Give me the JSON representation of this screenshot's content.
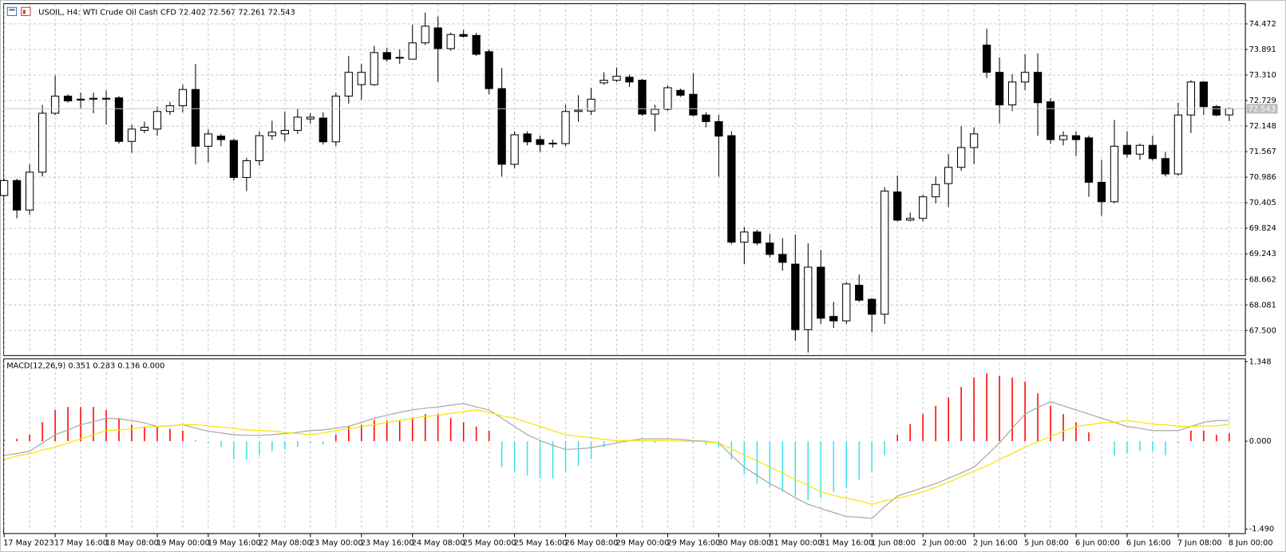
{
  "chart_data": [
    {
      "type": "candlestick",
      "title": "USOIL, H4:  WTI Crude Oil Cash CFD  72.402 72.567 72.261 72.543",
      "categories": [
        "17 May 2023",
        null,
        null,
        null,
        "17 May 16:00",
        null,
        null,
        null,
        "18 May 08:00",
        null,
        null,
        null,
        "19 May 00:00",
        null,
        null,
        null,
        "19 May 16:00",
        null,
        null,
        null,
        "22 May 08:00",
        null,
        null,
        null,
        "23 May 00:00",
        null,
        null,
        null,
        "23 May 16:00",
        null,
        null,
        null,
        "24 May 08:00",
        null,
        null,
        null,
        "25 May 00:00",
        null,
        null,
        null,
        "25 May 16:00",
        null,
        null,
        null,
        "26 May 08:00",
        null,
        null,
        null,
        "29 May 00:00",
        null,
        null,
        null,
        "29 May 16:00",
        null,
        null,
        null,
        "30 May 08:00",
        null,
        null,
        null,
        "31 May 00:00",
        null,
        null,
        null,
        "31 May 16:00",
        null,
        null,
        null,
        "1 Jun 08:00",
        null,
        null,
        null,
        "2 Jun 00:00",
        null,
        null,
        null,
        "2 Jun 16:00",
        null,
        null,
        null,
        "5 Jun 08:00",
        null,
        null,
        null,
        "6 Jun 00:00",
        null,
        null,
        null,
        "6 Jun 16:00",
        null,
        null,
        null,
        "7 Jun 08:00",
        null,
        null,
        null,
        "8 Jun 00:00"
      ],
      "open": [
        70.57,
        70.91,
        70.24,
        71.1,
        72.44,
        72.83,
        72.74,
        72.76,
        72.78,
        72.79,
        71.8,
        72.05,
        72.08,
        72.48,
        72.61,
        72.98,
        71.69,
        71.92,
        71.82,
        70.98,
        71.36,
        71.93,
        71.97,
        72.05,
        72.31,
        72.33,
        71.79,
        72.83,
        73.09,
        73.09,
        73.82,
        73.71,
        73.67,
        74.04,
        74.38,
        73.91,
        74.23,
        74.21,
        73.84,
        73.0,
        71.28,
        71.97,
        71.84,
        71.76,
        71.75,
        72.48,
        72.49,
        73.13,
        73.19,
        73.26,
        73.19,
        72.42,
        72.53,
        72.96,
        72.87,
        72.4,
        72.25,
        71.93,
        69.51,
        69.74,
        69.49,
        69.23,
        69.01,
        67.52,
        68.94,
        67.82,
        67.72,
        68.53,
        68.21,
        67.87,
        70.65,
        70.01,
        70.05,
        70.54,
        70.84,
        71.21,
        71.66,
        73.99,
        73.37,
        72.63,
        73.15,
        73.37,
        72.7,
        71.84,
        71.93,
        71.88,
        70.87,
        70.43,
        71.71,
        71.51,
        71.71,
        71.41,
        71.06,
        72.4,
        73.15,
        72.59,
        72.402
      ],
      "high": [
        70.95,
        70.95,
        71.28,
        72.63,
        73.3,
        72.87,
        72.91,
        72.91,
        72.96,
        72.83,
        72.18,
        72.25,
        72.59,
        72.7,
        73.09,
        73.56,
        72.07,
        71.97,
        71.86,
        71.43,
        72.03,
        72.27,
        72.48,
        72.55,
        72.44,
        72.46,
        72.91,
        73.74,
        73.56,
        73.97,
        73.93,
        73.89,
        74.45,
        74.73,
        74.64,
        74.27,
        74.34,
        74.27,
        73.89,
        73.47,
        72.03,
        72.03,
        71.93,
        71.84,
        72.63,
        72.85,
        73.02,
        73.37,
        73.48,
        73.32,
        73.22,
        72.63,
        73.07,
        73.0,
        73.35,
        72.46,
        72.4,
        72.03,
        69.85,
        69.79,
        69.7,
        69.6,
        69.68,
        69.48,
        69.33,
        68.15,
        68.6,
        68.77,
        68.24,
        70.76,
        71.02,
        70.18,
        70.59,
        71.0,
        71.51,
        72.14,
        72.12,
        74.36,
        73.71,
        73.33,
        73.78,
        73.8,
        72.78,
        72.03,
        72.03,
        71.93,
        71.38,
        72.29,
        72.03,
        71.75,
        71.93,
        71.56,
        72.68,
        73.19,
        73.17,
        72.63,
        72.567
      ],
      "low": [
        70.54,
        70.05,
        70.13,
        71.0,
        72.4,
        72.68,
        72.55,
        72.44,
        72.18,
        71.75,
        71.54,
        71.99,
        71.93,
        72.4,
        72.46,
        71.28,
        71.32,
        71.69,
        70.91,
        70.67,
        71.25,
        71.84,
        71.8,
        71.97,
        72.21,
        71.73,
        71.69,
        72.66,
        72.74,
        73.06,
        73.61,
        73.56,
        73.67,
        73.99,
        73.15,
        73.86,
        74.16,
        73.74,
        72.87,
        71.0,
        71.19,
        71.71,
        71.56,
        71.66,
        71.69,
        72.25,
        72.4,
        73.09,
        73.15,
        73.04,
        72.38,
        72.03,
        72.49,
        72.81,
        72.37,
        72.12,
        71.0,
        69.46,
        69.01,
        69.44,
        69.16,
        68.86,
        67.27,
        67.0,
        67.65,
        67.56,
        67.65,
        68.15,
        67.46,
        67.65,
        69.98,
        69.98,
        69.98,
        70.39,
        70.31,
        71.13,
        71.28,
        73.24,
        72.21,
        72.49,
        72.96,
        71.93,
        71.75,
        71.71,
        71.47,
        70.54,
        70.11,
        70.39,
        71.43,
        71.38,
        71.36,
        71.0,
        71.02,
        71.99,
        72.4,
        72.37,
        72.261
      ],
      "close": [
        70.91,
        70.24,
        71.1,
        72.44,
        72.83,
        72.72,
        72.76,
        72.78,
        72.77,
        71.8,
        72.08,
        72.12,
        72.48,
        72.61,
        72.98,
        71.69,
        71.97,
        71.84,
        70.98,
        71.36,
        71.93,
        72.01,
        72.05,
        72.35,
        72.35,
        71.79,
        72.83,
        73.37,
        73.37,
        73.82,
        73.67,
        73.7,
        74.04,
        74.42,
        73.91,
        74.23,
        74.19,
        73.78,
        73.0,
        71.28,
        71.95,
        71.79,
        71.73,
        71.75,
        72.48,
        72.51,
        72.76,
        73.19,
        73.28,
        73.15,
        72.42,
        72.53,
        73.02,
        72.85,
        72.4,
        72.25,
        71.92,
        69.51,
        69.74,
        69.49,
        69.23,
        69.05,
        67.52,
        68.94,
        67.78,
        67.72,
        68.56,
        68.19,
        67.87,
        70.67,
        70.01,
        70.05,
        70.54,
        70.82,
        71.21,
        71.66,
        71.97,
        73.37,
        72.63,
        73.15,
        73.37,
        72.68,
        71.84,
        71.93,
        71.84,
        70.87,
        70.43,
        71.69,
        71.51,
        71.71,
        71.41,
        71.06,
        72.4,
        73.15,
        72.59,
        72.4,
        72.543
      ],
      "up_color": "#ffffff",
      "down_color": "#000000",
      "last_price": 72.543,
      "ylim": [
        66.94,
        74.94
      ],
      "yticks": [
        {
          "value": 67.5,
          "label": "67.500"
        },
        68.081,
        68.662,
        69.243,
        69.824,
        70.405,
        70.986,
        71.567,
        72.148,
        72.729,
        {
          "value": 73.31,
          "label": "73.310"
        },
        73.891,
        74.472
      ],
      "grid": true
    },
    {
      "type": "macd",
      "title": "MACD(12,26,9) 0.351 0.283 0.136 0.000",
      "ylim": [
        -1.49,
        1.348
      ],
      "yticks": [
        1.348,
        {
          "value": 0,
          "label": "0.000"
        },
        {
          "value": -1.49,
          "label": "-1.490"
        }
      ],
      "series": [
        {
          "kind": "histogram",
          "up_color": "#ff0000",
          "down_color": "#3fe0e8",
          "values": [
            0.02,
            0.04,
            0.11,
            0.32,
            0.53,
            0.58,
            0.58,
            0.58,
            0.53,
            0.39,
            0.28,
            0.25,
            0.25,
            0.21,
            0.18,
            0.01,
            -0.03,
            -0.1,
            -0.31,
            -0.31,
            -0.24,
            -0.17,
            -0.14,
            -0.1,
            -0.03,
            -0.06,
            0.11,
            0.25,
            0.28,
            0.36,
            0.35,
            0.36,
            0.39,
            0.46,
            0.46,
            0.39,
            0.32,
            0.25,
            0.18,
            -0.44,
            -0.51,
            -0.58,
            -0.63,
            -0.63,
            -0.51,
            -0.42,
            -0.31,
            -0.1,
            -0.03,
            0.01,
            -0.03,
            -0.03,
            0.0,
            0.01,
            -0.03,
            -0.06,
            -0.1,
            -0.31,
            -0.56,
            -0.72,
            -0.79,
            -0.86,
            -0.93,
            -1.0,
            -0.97,
            -0.86,
            -0.79,
            -0.65,
            -0.51,
            -0.24,
            0.11,
            0.29,
            0.46,
            0.6,
            0.74,
            0.92,
            1.08,
            1.15,
            1.11,
            1.08,
            1.01,
            0.81,
            0.6,
            0.46,
            0.32,
            0.15,
            0.0,
            -0.24,
            -0.21,
            -0.17,
            -0.17,
            -0.24,
            -0.03,
            0.18,
            0.18,
            0.11,
            0.136
          ]
        },
        {
          "kind": "line",
          "color": "#a8a8a8",
          "values": [
            -0.24,
            -0.21,
            -0.17,
            -0.03,
            0.11,
            0.19,
            0.28,
            0.33,
            0.39,
            0.38,
            0.35,
            0.31,
            0.25,
            0.26,
            0.28,
            0.22,
            0.17,
            0.14,
            0.11,
            0.1,
            0.1,
            0.11,
            0.13,
            0.15,
            0.18,
            0.19,
            0.22,
            0.25,
            0.32,
            0.39,
            0.44,
            0.49,
            0.53,
            0.56,
            0.58,
            0.61,
            0.64,
            0.58,
            0.53,
            0.39,
            0.25,
            0.11,
            0.01,
            -0.07,
            -0.14,
            -0.13,
            -0.11,
            -0.07,
            -0.03,
            0.01,
            0.04,
            0.04,
            0.04,
            0.03,
            0.01,
            0.0,
            -0.03,
            -0.24,
            -0.44,
            -0.58,
            -0.72,
            -0.83,
            -0.96,
            -1.07,
            -1.14,
            -1.21,
            -1.28,
            -1.29,
            -1.31,
            -1.11,
            -0.93,
            -0.86,
            -0.79,
            -0.72,
            -0.63,
            -0.54,
            -0.44,
            -0.24,
            -0.03,
            0.22,
            0.46,
            0.57,
            0.67,
            0.6,
            0.53,
            0.46,
            0.39,
            0.32,
            0.25,
            0.22,
            0.18,
            0.18,
            0.18,
            0.25,
            0.32,
            0.35,
            0.351
          ]
        },
        {
          "kind": "line",
          "color": "#f5e600",
          "values": [
            -0.31,
            -0.25,
            -0.21,
            -0.15,
            -0.1,
            -0.03,
            0.04,
            0.11,
            0.18,
            0.19,
            0.21,
            0.24,
            0.25,
            0.26,
            0.28,
            0.28,
            0.26,
            0.24,
            0.22,
            0.19,
            0.18,
            0.17,
            0.15,
            0.13,
            0.11,
            0.14,
            0.18,
            0.21,
            0.25,
            0.28,
            0.32,
            0.35,
            0.39,
            0.42,
            0.44,
            0.47,
            0.5,
            0.53,
            0.49,
            0.43,
            0.39,
            0.32,
            0.25,
            0.18,
            0.11,
            0.08,
            0.06,
            0.03,
            0.01,
            0.01,
            0.01,
            0.01,
            0.01,
            0.0,
            0.0,
            -0.01,
            -0.03,
            -0.13,
            -0.24,
            -0.33,
            -0.44,
            -0.54,
            -0.65,
            -0.75,
            -0.86,
            -0.92,
            -0.97,
            -1.01,
            -1.07,
            -1.01,
            -0.97,
            -0.92,
            -0.86,
            -0.78,
            -0.7,
            -0.6,
            -0.51,
            -0.42,
            -0.31,
            -0.21,
            -0.1,
            -0.01,
            0.08,
            0.17,
            0.25,
            0.28,
            0.31,
            0.32,
            0.35,
            0.32,
            0.29,
            0.28,
            0.25,
            0.25,
            0.26,
            0.26,
            0.283
          ]
        }
      ],
      "grid": true
    }
  ]
}
